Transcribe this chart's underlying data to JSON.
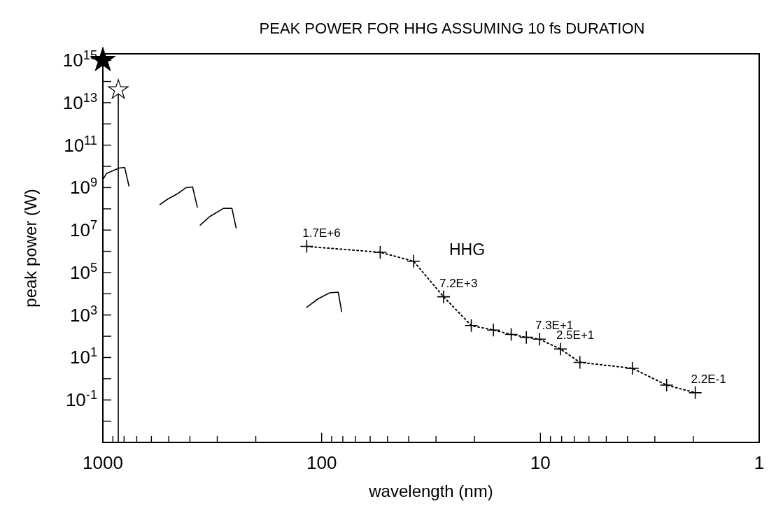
{
  "chart_data": {
    "type": "line",
    "title": "PEAK POWER FOR HHG ASSUMING 10 fs DURATION",
    "xlabel": "wavelength (nm)",
    "ylabel": "peak power (W)",
    "log": "xy",
    "xlim": [
      1000,
      1
    ],
    "ylim": [
      0.001,
      2000000000000000.0
    ],
    "xticks": [
      1000,
      {
        "value": 900,
        "label": null
      },
      {
        "value": 800,
        "label": null
      },
      {
        "value": 700,
        "label": null
      },
      {
        "value": 600,
        "label": null
      },
      {
        "value": 500,
        "label": null
      },
      {
        "value": 400,
        "label": null
      },
      {
        "value": 300,
        "label": null
      },
      {
        "value": 200,
        "label": null
      },
      100,
      {
        "value": 90,
        "label": null
      },
      {
        "value": 80,
        "label": null
      },
      {
        "value": 70,
        "label": null
      },
      {
        "value": 60,
        "label": null
      },
      {
        "value": 50,
        "label": null
      },
      {
        "value": 40,
        "label": null
      },
      {
        "value": 30,
        "label": null
      },
      {
        "value": 20,
        "label": null
      },
      10,
      {
        "value": 9,
        "label": null
      },
      {
        "value": 8,
        "label": null
      },
      {
        "value": 7,
        "label": null
      },
      {
        "value": 6,
        "label": null
      },
      {
        "value": 5,
        "label": null
      },
      {
        "value": 4,
        "label": null
      },
      {
        "value": 3,
        "label": null
      },
      {
        "value": 2,
        "label": null
      },
      1
    ],
    "yticks": [
      {
        "value": 1000000000000000.0,
        "label": "10$^{15}$"
      },
      {
        "value": 100000000000000.0,
        "label": null
      },
      {
        "value": 10000000000000.0,
        "label": "10$^{13}$"
      },
      {
        "value": 1000000000000.0,
        "label": null
      },
      {
        "value": 100000000000.0,
        "label": "10$^{11}$"
      },
      {
        "value": 10000000000.0,
        "label": null
      },
      {
        "value": 1000000000.0,
        "label": "10$^{9}$"
      },
      {
        "value": 100000000.0,
        "label": null
      },
      {
        "value": 10000000.0,
        "label": "10$^{7}$"
      },
      {
        "value": 1000000.0,
        "label": null
      },
      {
        "value": 100000.0,
        "label": "10$^{5}$"
      },
      {
        "value": 10000.0,
        "label": null
      },
      {
        "value": 1000,
        "label": "10$^{3}$"
      },
      {
        "value": 100,
        "label": null
      },
      {
        "value": 10,
        "label": "10$^{1}$"
      },
      {
        "value": 1,
        "label": null
      },
      {
        "value": 0.1,
        "label": "10$^{-1}$"
      },
      {
        "value": 0.01,
        "label": null
      }
    ],
    "series": [
      {
        "name": "HHG",
        "color": "#000000",
        "marker": "cross",
        "line_style": "dotted",
        "x": [
          117,
          54,
          38,
          27.7,
          20.7,
          16.4,
          13.6,
          11.6,
          10.1,
          8.1,
          6.6,
          3.8,
          2.65,
          1.96
        ],
        "values": [
          1700000,
          900000,
          340000,
          7200,
          320,
          195,
          122,
          89,
          73,
          25,
          5.9,
          3.1,
          0.5,
          0.22
        ],
        "value_labels": [
          "1.7E+6",
          null,
          null,
          "7.2E+3",
          null,
          null,
          null,
          null,
          "7.3E+1",
          "2.5E+1",
          null,
          null,
          null,
          "2.2E-1"
        ]
      },
      {
        "color": "#000000",
        "marker": "none",
        "line_style": "solid",
        "x": [
          993,
          963,
          843,
          795,
          760
        ],
        "values": [
          2700000000.0,
          4600000000.0,
          8300000000.0,
          9000000000.0,
          1200000000.0
        ]
      },
      {
        "color": "#000000",
        "marker": "none",
        "line_style": "solid",
        "x": [
          548,
          508,
          458,
          416,
          389,
          370
        ],
        "values": [
          160000000.0,
          280000000.0,
          500000000.0,
          1000000000.0,
          1070000000.0,
          120000000.0
        ]
      },
      {
        "color": "#000000",
        "marker": "none",
        "line_style": "solid",
        "x": [
          359,
          326,
          281,
          257,
          246
        ],
        "values": [
          17000000.0,
          42000000.0,
          105000000.0,
          105000000.0,
          12600000.0
        ]
      },
      {
        "color": "#000000",
        "marker": "none",
        "line_style": "solid",
        "x": [
          117,
          104,
          92,
          84,
          81
        ],
        "values": [
          2300,
          5700,
          11000,
          12000,
          1450
        ]
      },
      {
        "type": "scatter",
        "color": "#000000",
        "marker": "star",
        "x": [
          1000
        ],
        "values": [
          1000000000000000.0
        ]
      },
      {
        "type": "lollipop",
        "color": "#ffffff",
        "marker": "star",
        "x": [
          850
        ],
        "values": [
          40000000000000.0
        ]
      }
    ]
  }
}
